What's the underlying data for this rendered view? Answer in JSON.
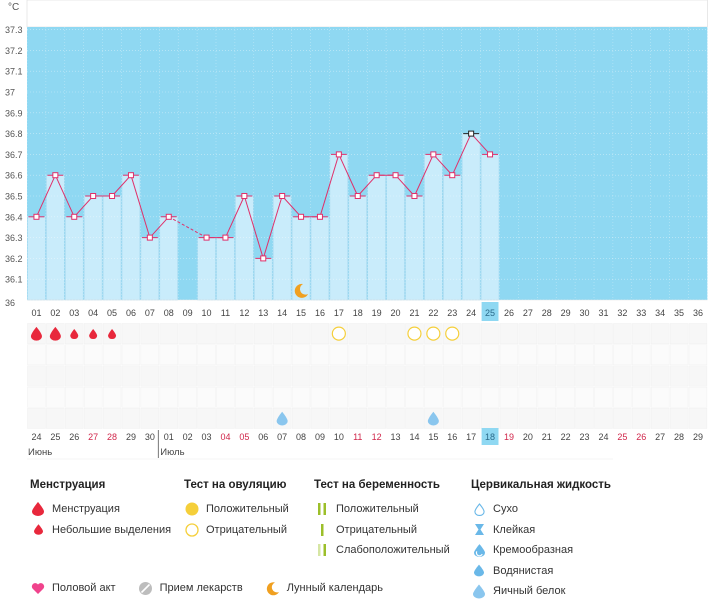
{
  "chart_data": {
    "type": "line",
    "ylabel": "°C",
    "ylim": [
      36.0,
      37.3
    ],
    "yticks": [
      "36",
      "36.1",
      "36.2",
      "36.3",
      "36.4",
      "36.5",
      "36.6",
      "36.7",
      "36.8",
      "36.9",
      "37",
      "37.1",
      "37.2",
      "37.3"
    ],
    "cycle_days": [
      "01",
      "02",
      "03",
      "04",
      "05",
      "06",
      "07",
      "08",
      "09",
      "10",
      "11",
      "12",
      "13",
      "14",
      "15",
      "16",
      "17",
      "18",
      "19",
      "20",
      "21",
      "22",
      "23",
      "24",
      "25",
      "26",
      "27",
      "28",
      "29",
      "30",
      "31",
      "32",
      "33",
      "34",
      "35",
      "36"
    ],
    "current_day_index": 24,
    "temperatures": [
      36.4,
      36.6,
      36.4,
      36.5,
      36.5,
      36.6,
      36.3,
      36.4,
      null,
      36.3,
      36.3,
      36.5,
      36.2,
      36.5,
      36.4,
      36.4,
      36.7,
      36.5,
      36.6,
      36.6,
      36.5,
      36.7,
      36.6,
      36.8,
      36.7,
      null,
      null,
      null,
      null,
      null,
      null,
      null,
      null,
      null,
      null,
      null
    ],
    "bar_temperatures": [
      36.4,
      36.6,
      36.4,
      36.5,
      36.5,
      36.6,
      36.3,
      36.4,
      null,
      36.3,
      36.3,
      36.5,
      36.2,
      36.5,
      36.4,
      36.4,
      36.7,
      36.5,
      36.6,
      36.6,
      36.5,
      36.7,
      36.6,
      36.8,
      36.7,
      null,
      null,
      null,
      null,
      null,
      null,
      null,
      null,
      null,
      null,
      null
    ],
    "peak_day_index": 23,
    "dates": [
      "24",
      "25",
      "26",
      "27",
      "28",
      "29",
      "30",
      "01",
      "02",
      "03",
      "04",
      "05",
      "06",
      "07",
      "08",
      "09",
      "10",
      "11",
      "12",
      "13",
      "14",
      "15",
      "16",
      "17",
      "18",
      "19",
      "20",
      "21",
      "22",
      "23",
      "24",
      "25",
      "26",
      "27",
      "28",
      "29"
    ],
    "weekend_indexes": [
      3,
      4,
      10,
      11,
      17,
      18,
      24,
      25,
      31,
      32
    ],
    "month_labels": [
      {
        "index": 0,
        "label": "Июнь"
      },
      {
        "index": 7,
        "label": "Июль"
      }
    ],
    "menstruation": [
      {
        "index": 0,
        "kind": "heavy"
      },
      {
        "index": 1,
        "kind": "heavy"
      },
      {
        "index": 2,
        "kind": "light"
      },
      {
        "index": 3,
        "kind": "light"
      },
      {
        "index": 4,
        "kind": "light"
      }
    ],
    "ovulation_tests_negative": [
      16,
      20,
      21,
      22
    ],
    "cervical_fluid_egg_white": [
      13,
      21
    ],
    "moon_day_index": 14
  },
  "colors": {
    "sky": "#8fd8f2",
    "bar": "#c9ecfb",
    "bar_border": "#a5d9f0",
    "line": "#e0306a",
    "weekend": "#d0264a",
    "current": "#8fd8f2",
    "drop_red": "#e8283c",
    "drop_blue": "#6ab8e8",
    "yellow": "#f5cf3a",
    "green": "#9cbf2a",
    "orange": "#f0a020",
    "pink": "#f0438c"
  },
  "legend": {
    "menstruation": {
      "title": "Менструация",
      "items": [
        "Менструация",
        "Небольшие выделения"
      ]
    },
    "ovulation": {
      "title": "Тест на овуляцию",
      "items": [
        "Положительный",
        "Отрицательный"
      ]
    },
    "pregnancy": {
      "title": "Тест на беременность",
      "items": [
        "Положительный",
        "Отрицательный",
        "Слабоположительный"
      ]
    },
    "fluid": {
      "title": "Цервикальная жидкость",
      "items": [
        "Сухо",
        "Клейкая",
        "Кремообразная",
        "Водянистая",
        "Яичный белок"
      ]
    },
    "bottom": [
      "Половой акт",
      "Прием лекарств",
      "Лунный календарь"
    ]
  }
}
